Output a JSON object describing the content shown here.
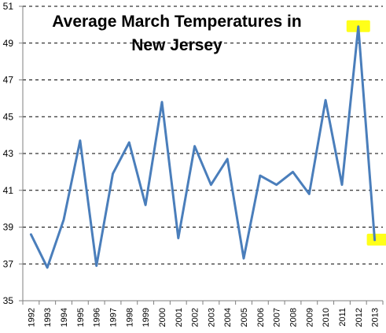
{
  "chart_data": {
    "type": "line",
    "title_lines": [
      "Average March Temperatures in",
      "New Jersey"
    ],
    "categories": [
      "1992",
      "1993",
      "1994",
      "1995",
      "1996",
      "1997",
      "1998",
      "1999",
      "2000",
      "2001",
      "2002",
      "2003",
      "2004",
      "2005",
      "2006",
      "2007",
      "2008",
      "2009",
      "2010",
      "2011",
      "2012",
      "2013"
    ],
    "series": [
      {
        "values": [
          38.6,
          36.8,
          39.4,
          43.7,
          36.9,
          41.9,
          43.6,
          40.2,
          45.8,
          38.4,
          43.4,
          41.3,
          42.7,
          37.3,
          41.8,
          41.3,
          42.0,
          40.8,
          45.9,
          41.3,
          49.9,
          38.3
        ],
        "color": "#4a7ebb"
      }
    ],
    "ylim": [
      35,
      51
    ],
    "yticks": [
      "35",
      "37",
      "39",
      "41",
      "43",
      "45",
      "47",
      "49",
      "51"
    ],
    "grid": "horizontal-dashed",
    "highlights": [
      {
        "category": "2012",
        "color": "#ffff00"
      },
      {
        "category": "2013",
        "color": "#ffff00"
      }
    ]
  }
}
